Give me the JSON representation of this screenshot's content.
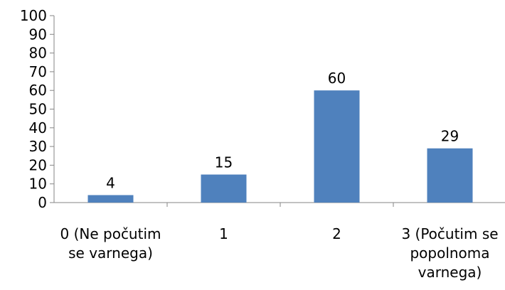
{
  "chart_data": {
    "type": "bar",
    "categories": [
      [
        "0 (Ne počutim",
        "se varnega)"
      ],
      [
        "1"
      ],
      [
        "2"
      ],
      [
        "3 (Počutim se",
        "popolnoma",
        "varnega)"
      ]
    ],
    "values": [
      4,
      15,
      60,
      29
    ],
    "data_labels": [
      "4",
      "15",
      "60",
      "29"
    ],
    "y_ticks": [
      "0",
      "10",
      "20",
      "30",
      "40",
      "50",
      "60",
      "70",
      "80",
      "90",
      "100"
    ],
    "ylim": [
      0,
      100
    ],
    "title": "",
    "xlabel": "",
    "ylabel": "",
    "grid": false,
    "legend": "none",
    "bar_color": "#4f81bd",
    "axis_color": "#868686"
  }
}
